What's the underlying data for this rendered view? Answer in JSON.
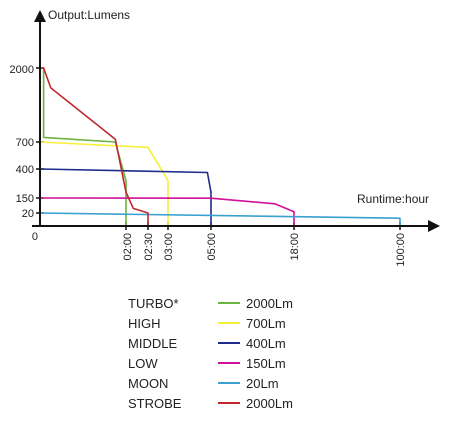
{
  "chart_data": {
    "type": "line",
    "ylabel": "Output:Lumens",
    "xlabel": "Runtime:hour",
    "y_ticks": [
      "2000",
      "700",
      "400",
      "150",
      "20",
      "0"
    ],
    "x_ticks": [
      "02:00",
      "02:30",
      "03:00",
      "05:00",
      "18:00",
      "100:00"
    ],
    "series": [
      {
        "mode": "TURBO*",
        "name": "2000Lm",
        "color": "#6db33f",
        "points": [
          [
            "0:00",
            2000
          ],
          [
            "0:05",
            2000
          ],
          [
            "0:05",
            780
          ],
          [
            "1:45",
            700
          ],
          [
            "2:00",
            300
          ],
          [
            "2:00",
            0
          ]
        ]
      },
      {
        "mode": "HIGH",
        "name": "700Lm",
        "color": "#f5f03c",
        "points": [
          [
            "0:00",
            700
          ],
          [
            "2:30",
            640
          ],
          [
            "3:00",
            300
          ],
          [
            "3:00",
            0
          ]
        ]
      },
      {
        "mode": "MIDDLE",
        "name": "400Lm",
        "color": "#1f2b8c",
        "points": [
          [
            "0:00",
            400
          ],
          [
            "4:50",
            370
          ],
          [
            "5:00",
            200
          ],
          [
            "5:00",
            0
          ]
        ]
      },
      {
        "mode": "LOW",
        "name": "150Lm",
        "color": "#d0109a",
        "points": [
          [
            "0:00",
            150
          ],
          [
            "5:00",
            148
          ],
          [
            "15:00",
            100
          ],
          [
            "18:00",
            30
          ],
          [
            "18:00",
            0
          ]
        ]
      },
      {
        "mode": "MOON",
        "name": "20Lm",
        "color": "#3aa0cf",
        "points": [
          [
            "0:00",
            20
          ],
          [
            "100:00",
            12
          ],
          [
            "100:00",
            0
          ]
        ]
      },
      {
        "mode": "STROBE",
        "name": "2000Lm",
        "color": "#c0282d",
        "points": [
          [
            "0:00",
            2000
          ],
          [
            "0:05",
            2000
          ],
          [
            "0:15",
            1650
          ],
          [
            "1:45",
            750
          ],
          [
            "2:00",
            200
          ],
          [
            "2:10",
            60
          ],
          [
            "2:30",
            20
          ],
          [
            "2:30",
            0
          ]
        ]
      }
    ]
  }
}
